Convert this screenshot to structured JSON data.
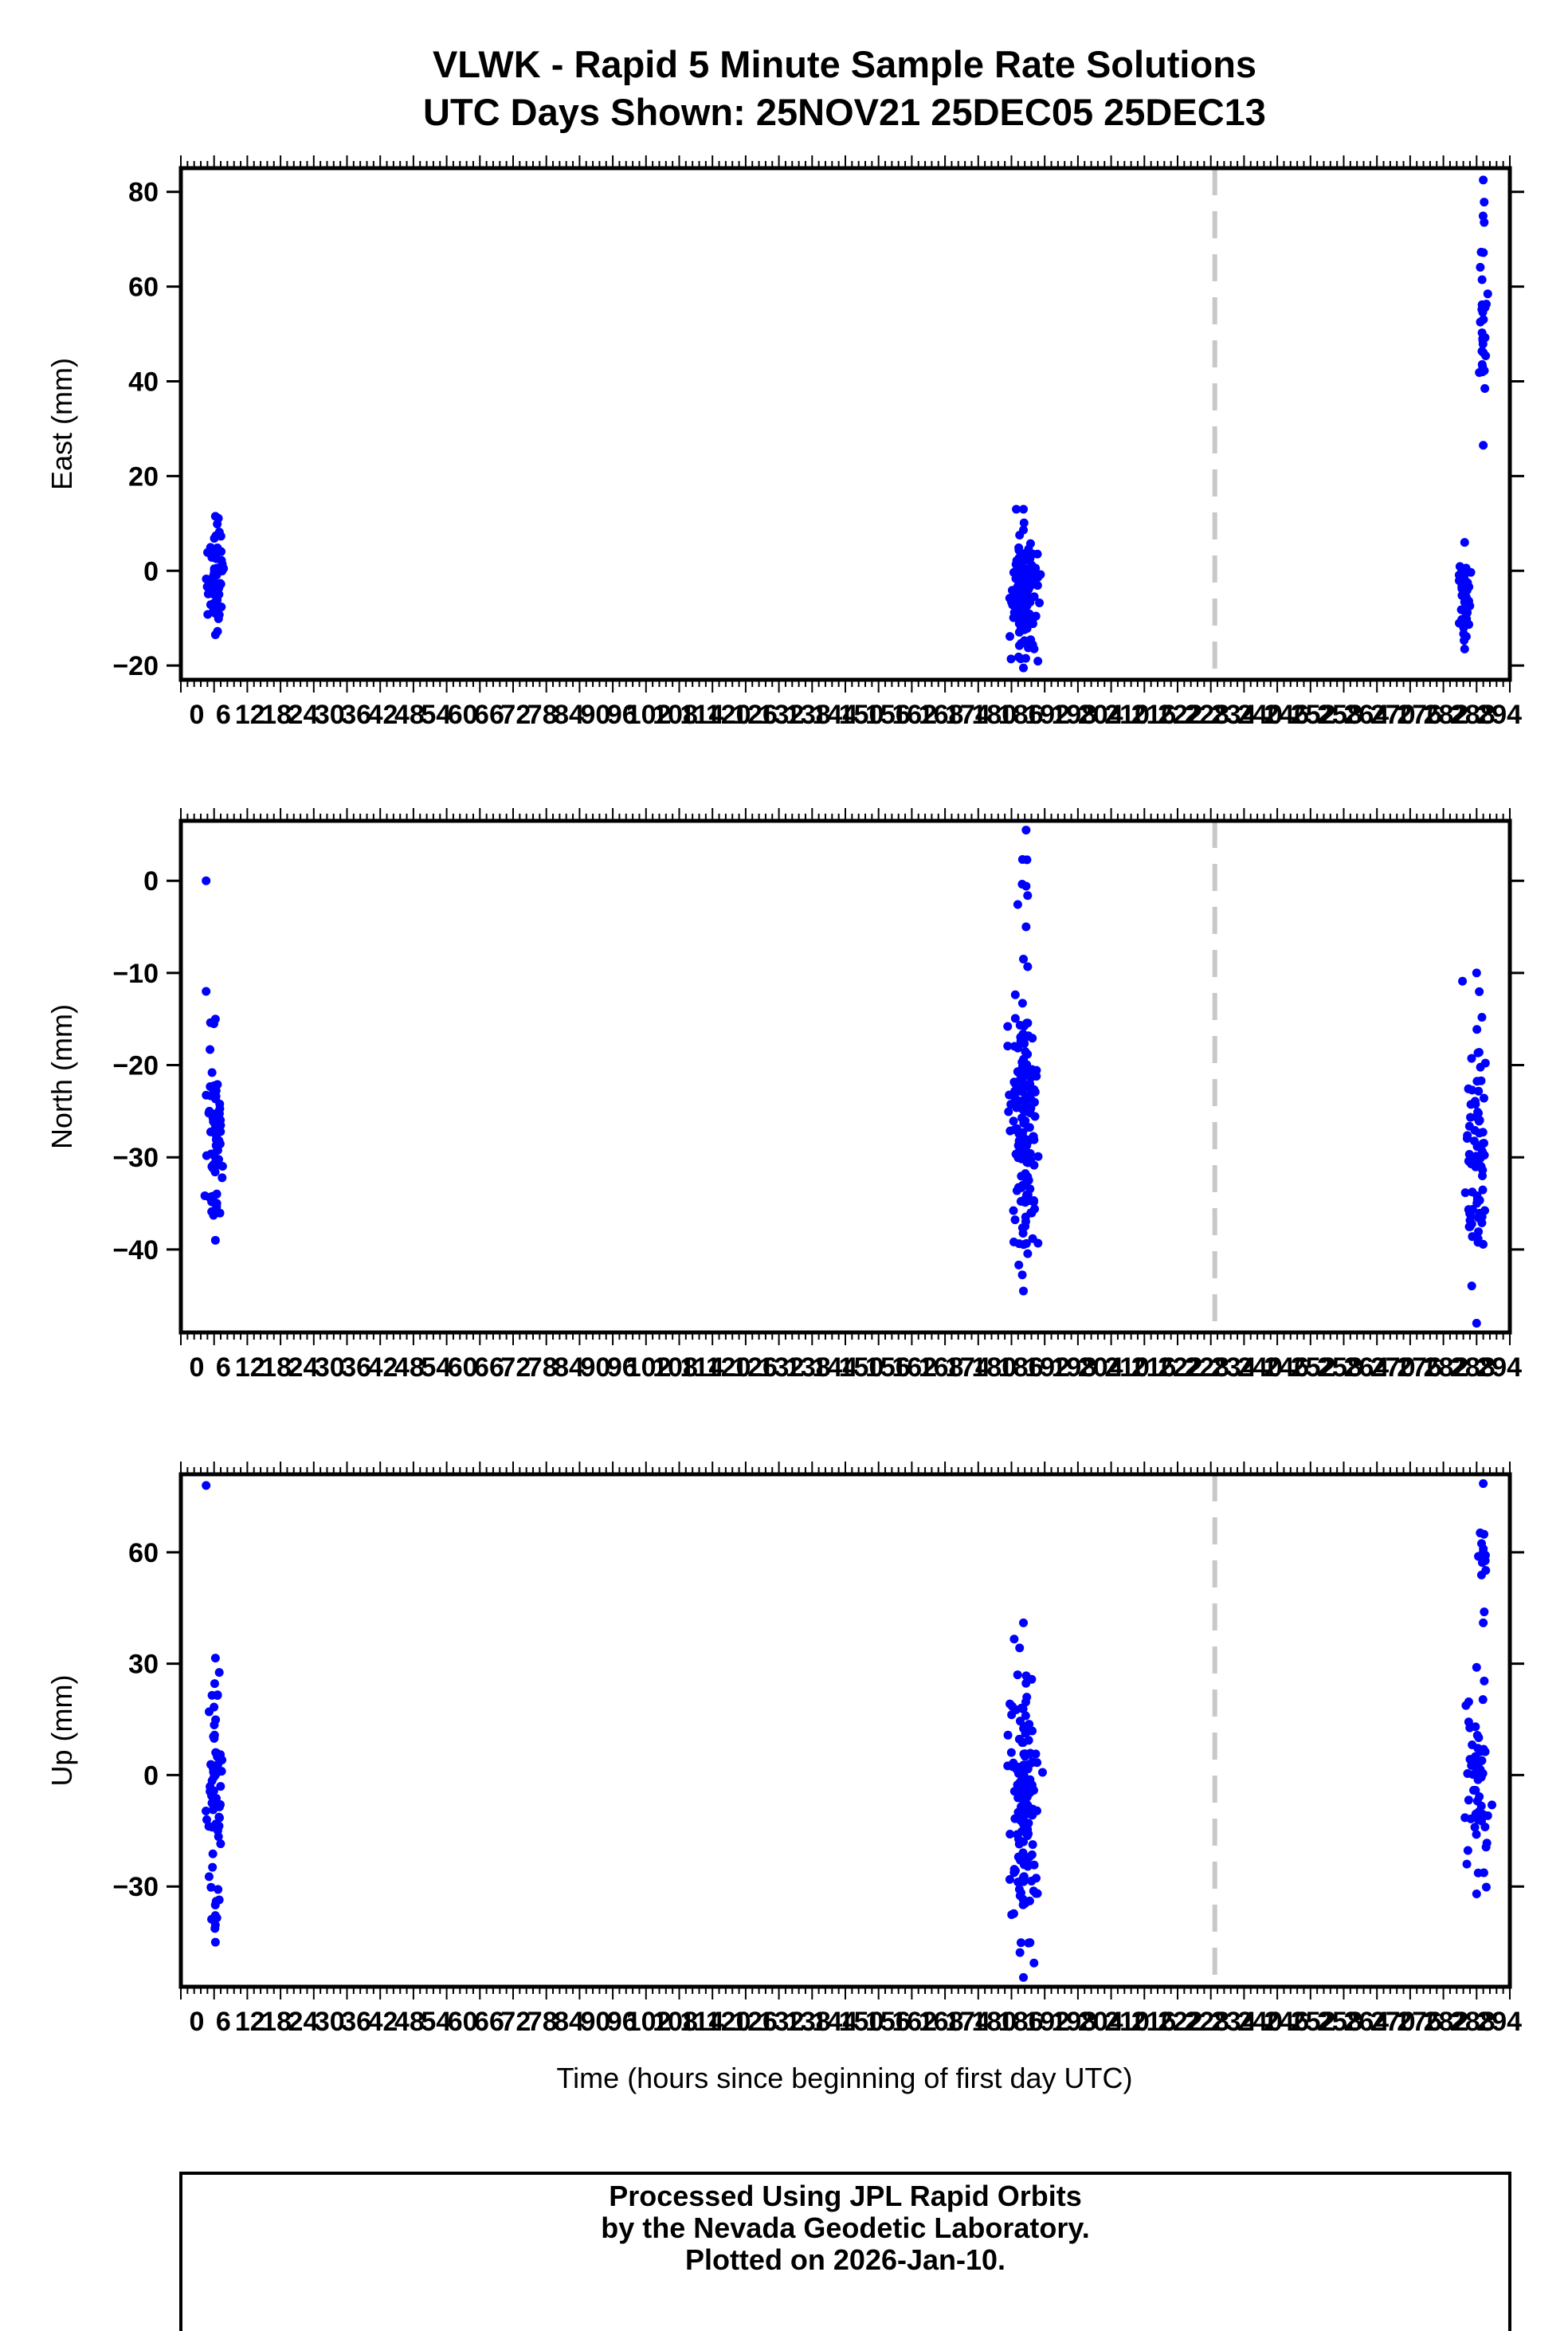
{
  "title_line1": "VLWK - Rapid 5 Minute Sample Rate Solutions",
  "title_line2": "UTC Days Shown:  25NOV21 25DEC05 25DEC13",
  "xlabel": "Time (hours since beginning of first day UTC)",
  "credits": [
    "Processed Using JPL Rapid Orbits",
    "by the Nevada Geodetic Laboratory.",
    "Plotted on 2026-Jan-10."
  ],
  "colors": {
    "points": "#0000ff",
    "axes": "#000000",
    "divider": "#c8c8c8"
  },
  "chart_data": [
    {
      "type": "scatter",
      "ylabel": "East (mm)",
      "ylim": [
        -23,
        85
      ],
      "yticks": [
        -20,
        0,
        20,
        40,
        60,
        80
      ],
      "ytick_labels": [
        "−20",
        "0",
        "20",
        "40",
        "60",
        "80"
      ],
      "divider_x": 0.778,
      "clusters": [
        {
          "center": 0.026,
          "width": 0.011,
          "ymin": -13.5,
          "ymax": 11.5,
          "count": 70
        },
        {
          "center": 0.634,
          "width": 0.02,
          "ymin": -20.5,
          "ymax": 13.0,
          "count": 160
        },
        {
          "center": 0.966,
          "width": 0.008,
          "ymin": -16.5,
          "ymax": 6.0,
          "count": 45
        },
        {
          "center": 0.98,
          "width": 0.006,
          "ymin": 26.5,
          "ymax": 82.5,
          "count": 30
        }
      ]
    },
    {
      "type": "scatter",
      "ylabel": "North (mm)",
      "ylim": [
        -49,
        6.5
      ],
      "yticks": [
        -40,
        -30,
        -20,
        -10,
        0
      ],
      "ytick_labels": [
        "−40",
        "−30",
        "−20",
        "−10",
        "0"
      ],
      "divider_x": 0.778,
      "clusters": [
        {
          "center": 0.026,
          "width": 0.011,
          "ymin": -39.0,
          "ymax": -15.0,
          "count": 70
        },
        {
          "center": 0.634,
          "width": 0.02,
          "ymin": -44.5,
          "ymax": -8.5,
          "count": 160
        },
        {
          "center": 0.636,
          "width": 0.01,
          "ymin": -5.0,
          "ymax": 5.5,
          "count": 6
        },
        {
          "center": 0.975,
          "width": 0.016,
          "ymin": -48.0,
          "ymax": -10.0,
          "count": 75
        }
      ],
      "isolated_points": [
        {
          "x": 0.019,
          "y": 0
        },
        {
          "x": 0.019,
          "y": -12
        }
      ]
    },
    {
      "type": "scatter",
      "ylabel": "Up (mm)",
      "ylim": [
        -57,
        81
      ],
      "yticks": [
        -30,
        0,
        30,
        60
      ],
      "ytick_labels": [
        "−30",
        "0",
        "30",
        "60"
      ],
      "divider_x": 0.778,
      "clusters": [
        {
          "center": 0.026,
          "width": 0.011,
          "ymin": -45.0,
          "ymax": 31.5,
          "count": 70
        },
        {
          "center": 0.634,
          "width": 0.02,
          "ymin": -54.5,
          "ymax": 41.0,
          "count": 160
        },
        {
          "center": 0.975,
          "width": 0.016,
          "ymin": -32.0,
          "ymax": 29.0,
          "count": 60
        },
        {
          "center": 0.98,
          "width": 0.006,
          "ymin": 41.0,
          "ymax": 78.5,
          "count": 12
        }
      ],
      "isolated_points": [
        {
          "x": 0.019,
          "y": 78
        }
      ]
    }
  ]
}
